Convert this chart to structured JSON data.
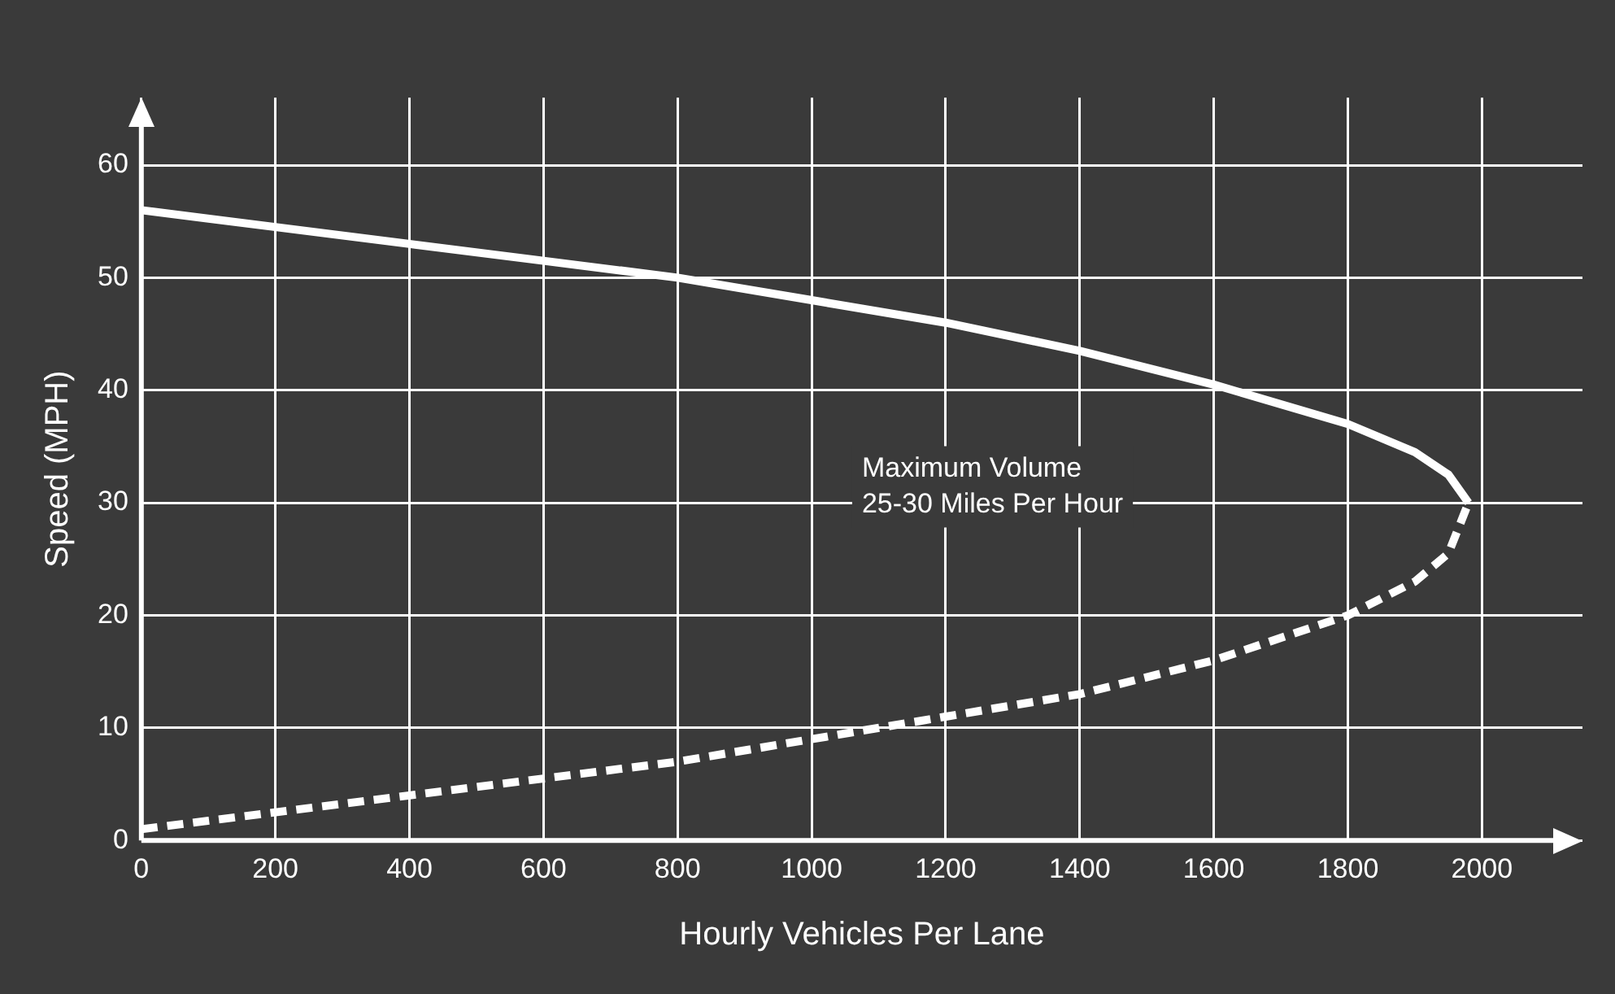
{
  "chart_data": {
    "type": "line",
    "xlabel": "Hourly Vehicles Per Lane",
    "ylabel": "Speed (MPH)",
    "xlim": [
      0,
      2150
    ],
    "ylim": [
      0,
      66
    ],
    "xticks": [
      0,
      200,
      400,
      600,
      800,
      1000,
      1200,
      1400,
      1600,
      1800,
      2000
    ],
    "yticks": [
      0,
      10,
      20,
      30,
      40,
      50,
      60
    ],
    "grid": true,
    "legend": false,
    "marker": "none",
    "series": [
      {
        "color": "#ffffff",
        "line_style": "solid",
        "x": [
          0,
          200,
          400,
          600,
          800,
          1000,
          1200,
          1400,
          1600,
          1800,
          1900,
          1950,
          1980
        ],
        "values": [
          56,
          54.5,
          53,
          51.5,
          50,
          48,
          46,
          43.5,
          40.5,
          37,
          34.5,
          32.5,
          30
        ]
      },
      {
        "color": "#ffffff",
        "line_style": "dashed",
        "x": [
          0,
          200,
          400,
          600,
          800,
          1000,
          1200,
          1400,
          1600,
          1800,
          1900,
          1950,
          1980
        ],
        "values": [
          1,
          2.5,
          4,
          5.5,
          7,
          9,
          11,
          13,
          16,
          20,
          23,
          25.5,
          30
        ]
      }
    ],
    "annotations": [
      "Maximum Volume\n25-30 Miles Per Hour"
    ]
  }
}
